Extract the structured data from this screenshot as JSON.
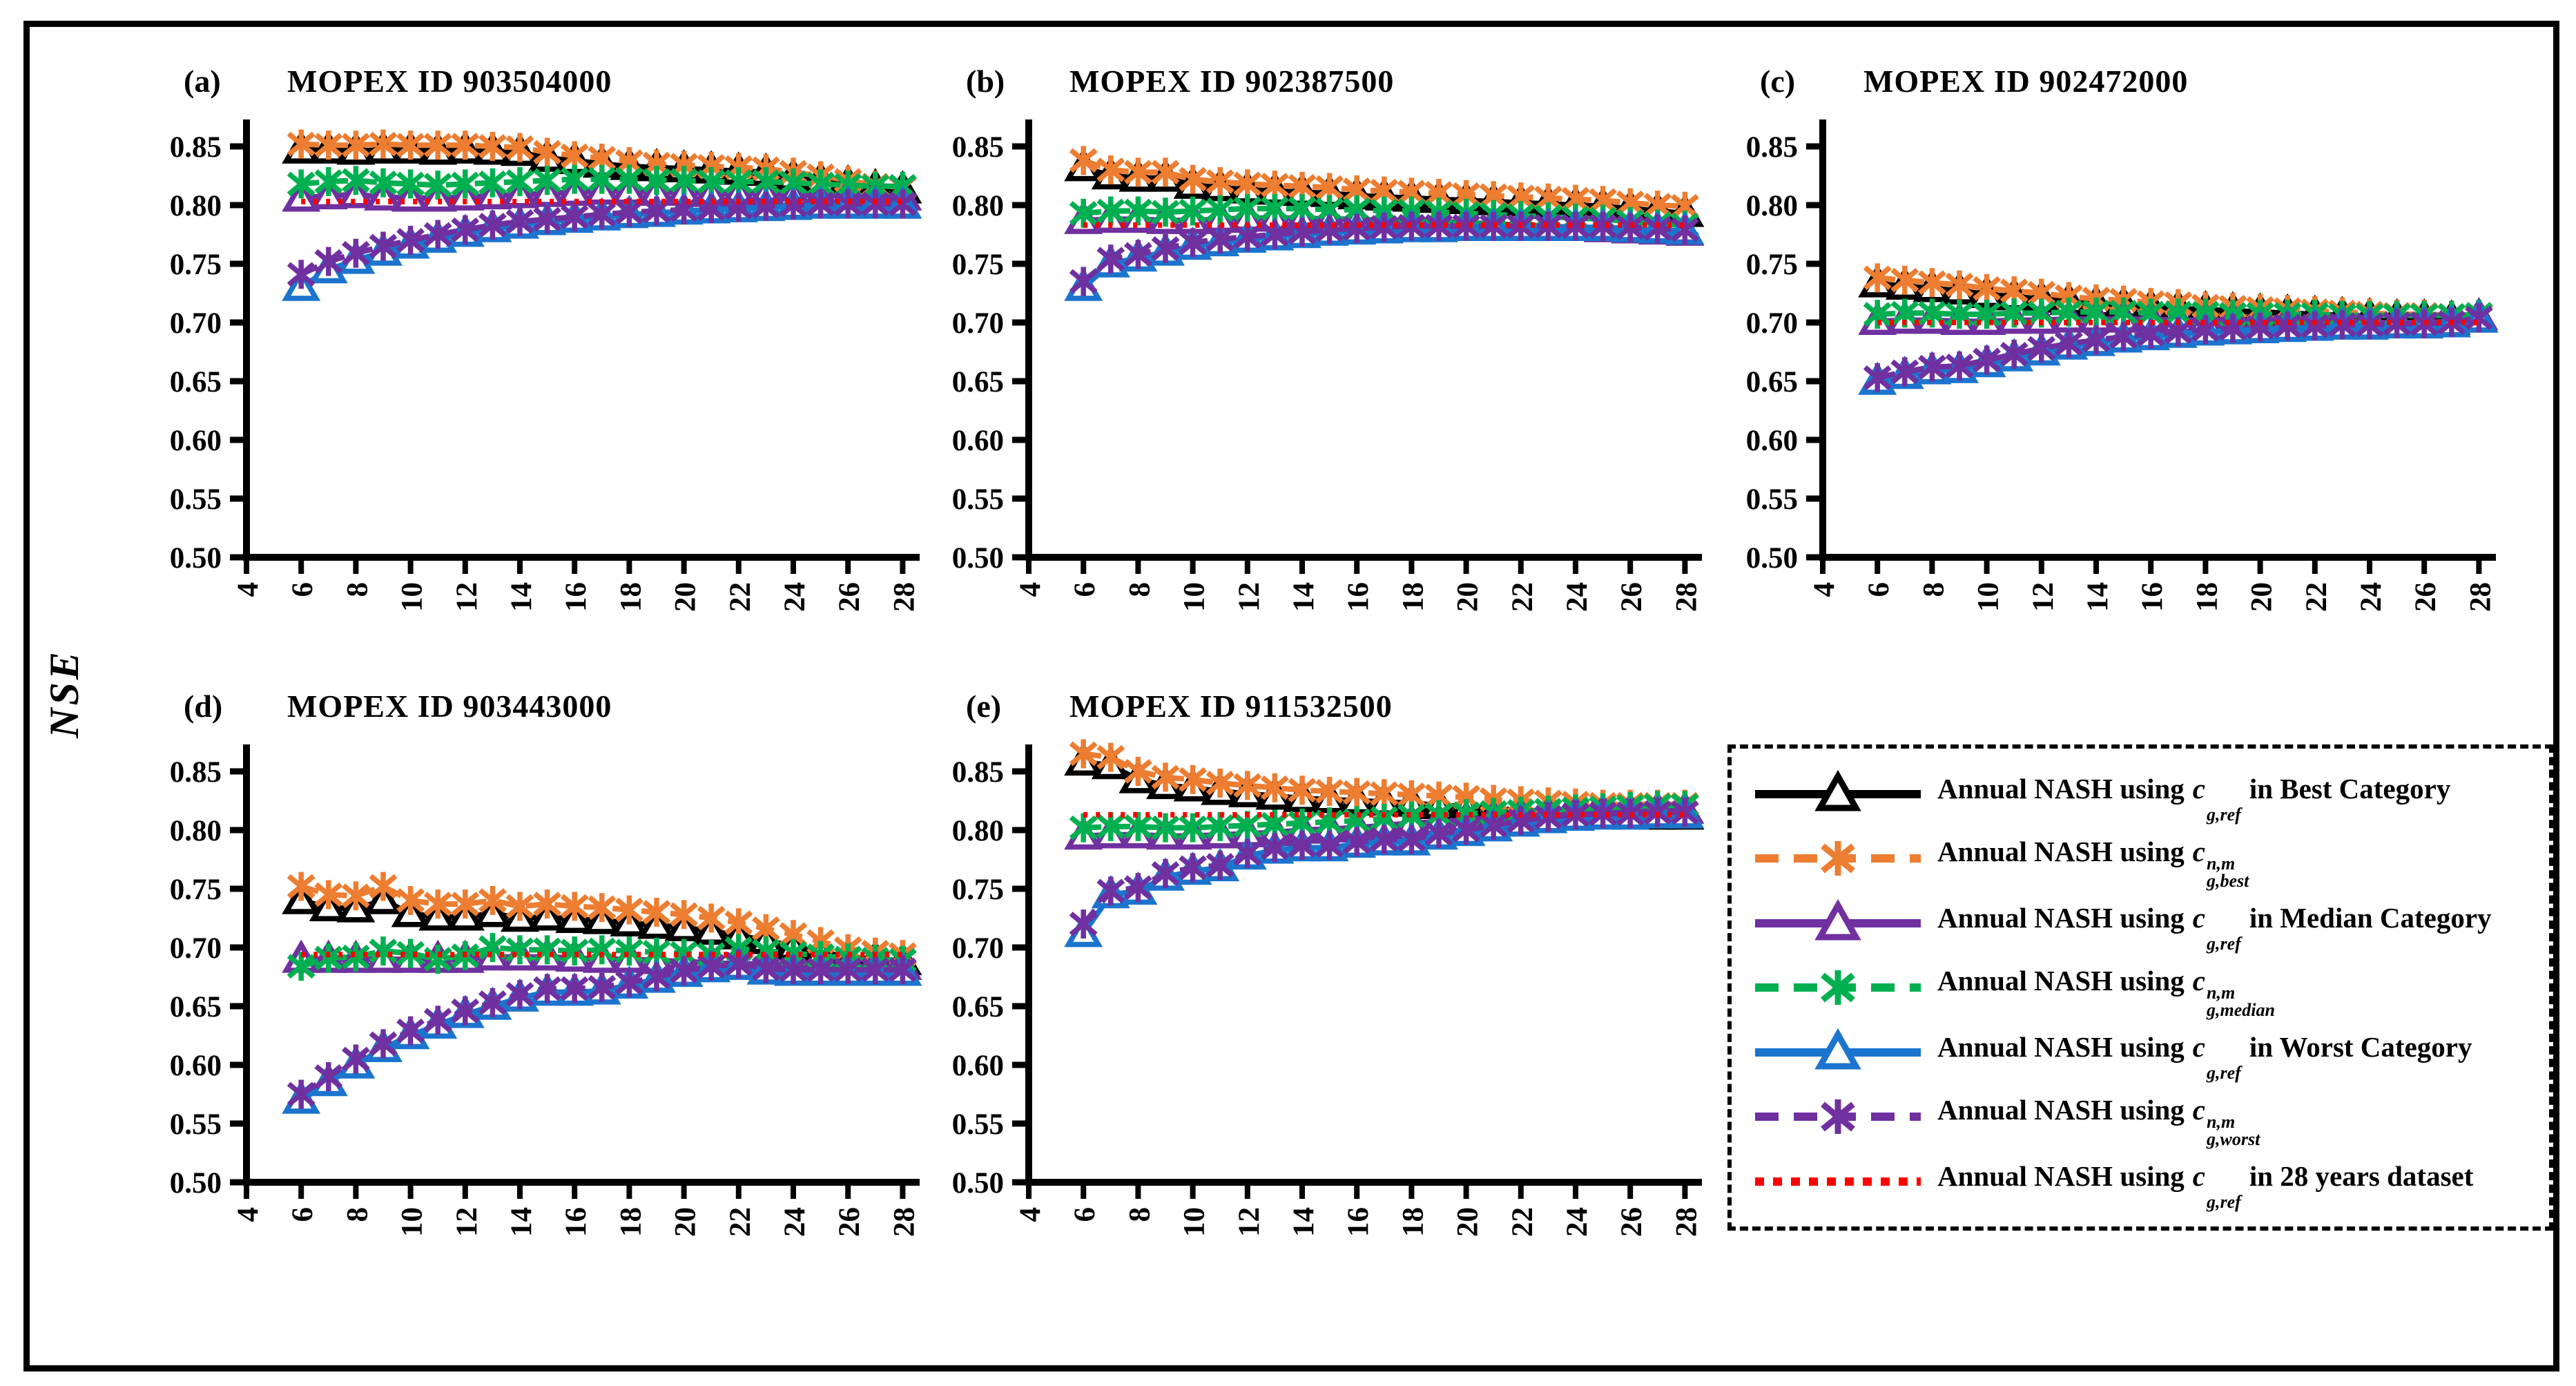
{
  "figure": {
    "ylabel": "NSE"
  },
  "colors": {
    "black": "#000000",
    "orange": "#ED7D31",
    "purple": "#7030A0",
    "green": "#00B050",
    "blue": "#1B74CE",
    "purple_x": "#7030A0",
    "red": "#FF0000",
    "axis": "#000000"
  },
  "series_styles": {
    "black": {
      "color_key": "black",
      "line": "solid",
      "marker": "triangle"
    },
    "orange": {
      "color_key": "orange",
      "line": "dashed",
      "marker": "asterisk"
    },
    "purple": {
      "color_key": "purple",
      "line": "solid",
      "marker": "triangle"
    },
    "green": {
      "color_key": "green",
      "line": "dashed",
      "marker": "asterisk"
    },
    "blue": {
      "color_key": "blue",
      "line": "solid",
      "marker": "triangle"
    },
    "purpleX": {
      "color_key": "purple_x",
      "line": "dashed",
      "marker": "asterisk"
    },
    "red": {
      "color_key": "red",
      "line": "dotted",
      "marker": "none"
    }
  },
  "legend": {
    "row_series": [
      "black",
      "orange",
      "purple",
      "green",
      "blue",
      "purpleX",
      "red"
    ],
    "entries": [
      {
        "prefix": "Annual NASH using",
        "base": "c",
        "sup": "",
        "sub": "g,ref",
        "suffix": "in Best Category"
      },
      {
        "prefix": "Annual NASH using",
        "base": "c",
        "sup": "n,m",
        "sub": "g,best",
        "suffix": ""
      },
      {
        "prefix": "Annual NASH using",
        "base": "c",
        "sup": "",
        "sub": "g,ref",
        "suffix": "in Median Category"
      },
      {
        "prefix": "Annual NASH using",
        "base": "c",
        "sup": "n,m",
        "sub": "g,median",
        "suffix": ""
      },
      {
        "prefix": "Annual NASH using",
        "base": "c",
        "sup": "",
        "sub": "g,ref",
        "suffix": "in Worst Category"
      },
      {
        "prefix": "Annual NASH using",
        "base": "c",
        "sup": "n,m",
        "sub": "g,worst",
        "suffix": ""
      },
      {
        "prefix": "Annual NASH using",
        "base": "c",
        "sup": "",
        "sub": "g,ref",
        "suffix": "in 28 years dataset"
      }
    ]
  },
  "chart_data": {
    "type": "line",
    "ylabel": "NSE",
    "xlabel": "",
    "grid": false,
    "legend_position": "bottom-right-box",
    "x_ticks": [
      4,
      6,
      8,
      10,
      12,
      14,
      16,
      18,
      20,
      22,
      24,
      26,
      28
    ],
    "y_tick_labels": [
      "0.50",
      "0.55",
      "0.60",
      "0.65",
      "0.70",
      "0.75",
      "0.80",
      "0.85"
    ],
    "ylim": [
      0.5,
      0.872
    ],
    "xlim": [
      4,
      28.6
    ],
    "x": [
      6,
      7,
      8,
      9,
      10,
      11,
      12,
      13,
      14,
      15,
      16,
      17,
      18,
      19,
      20,
      21,
      22,
      23,
      24,
      25,
      26,
      27,
      28
    ],
    "series_names": {
      "black": "Annual NASH using c_g,ref in Best Category",
      "orange": "Annual NASH using c^n,m_g,best",
      "purple": "Annual NASH using c_g,ref in Median Category",
      "green": "Annual NASH using c^n,m_g,median",
      "blue": "Annual NASH using c_g,ref in Worst Category",
      "purpleX": "Annual NASH using c^n,m_g,worst",
      "red": "Annual NASH using c_g,ref in 28 years dataset"
    },
    "charts": [
      {
        "panel_label": "(a)",
        "title": "MOPEX ID 903504000",
        "red_ref": 0.803,
        "series": {
          "black": [
            0.847,
            0.847,
            0.846,
            0.847,
            0.847,
            0.846,
            0.847,
            0.846,
            0.845,
            0.84,
            0.838,
            0.835,
            0.833,
            0.832,
            0.831,
            0.83,
            0.829,
            0.828,
            0.824,
            0.821,
            0.818,
            0.815,
            0.813
          ],
          "orange": [
            0.852,
            0.851,
            0.851,
            0.852,
            0.851,
            0.851,
            0.851,
            0.85,
            0.849,
            0.845,
            0.842,
            0.84,
            0.837,
            0.835,
            0.834,
            0.833,
            0.832,
            0.831,
            0.828,
            0.825,
            0.821,
            0.817,
            0.815
          ],
          "purple": [
            0.806,
            0.808,
            0.809,
            0.807,
            0.806,
            0.806,
            0.807,
            0.808,
            0.809,
            0.81,
            0.811,
            0.812,
            0.812,
            0.811,
            0.811,
            0.81,
            0.81,
            0.81,
            0.809,
            0.808,
            0.808,
            0.807,
            0.807
          ],
          "green": [
            0.818,
            0.82,
            0.821,
            0.819,
            0.818,
            0.817,
            0.818,
            0.819,
            0.82,
            0.821,
            0.822,
            0.822,
            0.822,
            0.821,
            0.821,
            0.82,
            0.82,
            0.82,
            0.819,
            0.818,
            0.817,
            0.816,
            0.816
          ],
          "blue": [
            0.73,
            0.745,
            0.753,
            0.76,
            0.766,
            0.771,
            0.776,
            0.78,
            0.783,
            0.786,
            0.788,
            0.79,
            0.792,
            0.793,
            0.795,
            0.796,
            0.797,
            0.798,
            0.799,
            0.8,
            0.8,
            0.8,
            0.8
          ],
          "purpleX": [
            0.741,
            0.752,
            0.759,
            0.765,
            0.77,
            0.775,
            0.779,
            0.783,
            0.786,
            0.788,
            0.79,
            0.792,
            0.794,
            0.795,
            0.796,
            0.797,
            0.798,
            0.799,
            0.8,
            0.801,
            0.801,
            0.801,
            0.801
          ]
        }
      },
      {
        "panel_label": "(b)",
        "title": "MOPEX ID 902387500",
        "red_ref": 0.783,
        "series": {
          "black": [
            0.832,
            0.825,
            0.823,
            0.823,
            0.817,
            0.815,
            0.813,
            0.812,
            0.811,
            0.81,
            0.808,
            0.807,
            0.806,
            0.805,
            0.804,
            0.803,
            0.802,
            0.801,
            0.8,
            0.799,
            0.797,
            0.795,
            0.793
          ],
          "orange": [
            0.838,
            0.83,
            0.828,
            0.828,
            0.822,
            0.82,
            0.818,
            0.817,
            0.816,
            0.815,
            0.813,
            0.812,
            0.811,
            0.81,
            0.809,
            0.808,
            0.807,
            0.806,
            0.805,
            0.804,
            0.802,
            0.8,
            0.799
          ],
          "purple": [
            0.787,
            0.788,
            0.788,
            0.787,
            0.787,
            0.788,
            0.789,
            0.789,
            0.789,
            0.788,
            0.788,
            0.787,
            0.787,
            0.786,
            0.785,
            0.784,
            0.783,
            0.782,
            0.781,
            0.78,
            0.779,
            0.778,
            0.777
          ],
          "green": [
            0.793,
            0.795,
            0.795,
            0.794,
            0.795,
            0.796,
            0.797,
            0.797,
            0.797,
            0.796,
            0.796,
            0.795,
            0.795,
            0.794,
            0.793,
            0.792,
            0.791,
            0.79,
            0.789,
            0.788,
            0.786,
            0.784,
            0.783
          ],
          "blue": [
            0.73,
            0.75,
            0.755,
            0.76,
            0.765,
            0.768,
            0.771,
            0.773,
            0.775,
            0.777,
            0.778,
            0.779,
            0.78,
            0.78,
            0.781,
            0.781,
            0.781,
            0.781,
            0.781,
            0.781,
            0.78,
            0.779,
            0.778
          ],
          "purpleX": [
            0.735,
            0.754,
            0.758,
            0.763,
            0.768,
            0.771,
            0.773,
            0.775,
            0.777,
            0.779,
            0.78,
            0.781,
            0.782,
            0.782,
            0.782,
            0.782,
            0.782,
            0.782,
            0.782,
            0.782,
            0.781,
            0.78,
            0.779
          ]
        }
      },
      {
        "panel_label": "(c)",
        "title": "MOPEX ID 902472000",
        "red_ref": 0.7,
        "series": {
          "black": [
            0.733,
            0.731,
            0.729,
            0.727,
            0.724,
            0.722,
            0.72,
            0.718,
            0.716,
            0.715,
            0.713,
            0.712,
            0.711,
            0.71,
            0.709,
            0.708,
            0.707,
            0.706,
            0.705,
            0.704,
            0.704,
            0.703,
            0.703
          ],
          "orange": [
            0.738,
            0.736,
            0.734,
            0.732,
            0.729,
            0.727,
            0.725,
            0.722,
            0.72,
            0.719,
            0.717,
            0.716,
            0.714,
            0.713,
            0.712,
            0.711,
            0.71,
            0.709,
            0.708,
            0.707,
            0.707,
            0.706,
            0.706
          ],
          "purple": [
            0.701,
            0.702,
            0.702,
            0.701,
            0.701,
            0.702,
            0.702,
            0.703,
            0.703,
            0.703,
            0.703,
            0.702,
            0.702,
            0.702,
            0.701,
            0.701,
            0.701,
            0.701,
            0.7,
            0.7,
            0.7,
            0.701,
            0.705
          ],
          "green": [
            0.707,
            0.708,
            0.708,
            0.707,
            0.707,
            0.708,
            0.708,
            0.709,
            0.709,
            0.709,
            0.708,
            0.708,
            0.708,
            0.707,
            0.707,
            0.707,
            0.707,
            0.706,
            0.706,
            0.706,
            0.706,
            0.706,
            0.707
          ],
          "blue": [
            0.65,
            0.655,
            0.659,
            0.66,
            0.665,
            0.67,
            0.675,
            0.68,
            0.683,
            0.686,
            0.688,
            0.69,
            0.692,
            0.693,
            0.694,
            0.695,
            0.696,
            0.697,
            0.697,
            0.698,
            0.698,
            0.699,
            0.703
          ],
          "purpleX": [
            0.653,
            0.658,
            0.662,
            0.663,
            0.668,
            0.673,
            0.678,
            0.682,
            0.685,
            0.688,
            0.69,
            0.692,
            0.694,
            0.695,
            0.696,
            0.697,
            0.697,
            0.698,
            0.698,
            0.699,
            0.699,
            0.7,
            0.704
          ]
        }
      },
      {
        "panel_label": "(d)",
        "title": "MOPEX ID 903443000",
        "red_ref": 0.694,
        "series": {
          "black": [
            0.74,
            0.734,
            0.733,
            0.74,
            0.729,
            0.726,
            0.726,
            0.729,
            0.725,
            0.726,
            0.724,
            0.723,
            0.721,
            0.719,
            0.717,
            0.714,
            0.71,
            0.706,
            0.701,
            0.696,
            0.692,
            0.69,
            0.688
          ],
          "orange": [
            0.752,
            0.745,
            0.744,
            0.752,
            0.74,
            0.737,
            0.737,
            0.74,
            0.735,
            0.737,
            0.735,
            0.734,
            0.732,
            0.73,
            0.728,
            0.725,
            0.721,
            0.716,
            0.711,
            0.705,
            0.699,
            0.696,
            0.694
          ],
          "purple": [
            0.69,
            0.69,
            0.69,
            0.69,
            0.69,
            0.69,
            0.69,
            0.692,
            0.692,
            0.692,
            0.691,
            0.69,
            0.69,
            0.689,
            0.688,
            0.687,
            0.686,
            0.686,
            0.685,
            0.685,
            0.684,
            0.684,
            0.684
          ],
          "green": [
            0.684,
            0.691,
            0.692,
            0.697,
            0.695,
            0.69,
            0.693,
            0.7,
            0.698,
            0.698,
            0.697,
            0.698,
            0.697,
            0.696,
            0.695,
            0.694,
            0.699,
            0.697,
            0.695,
            0.693,
            0.691,
            0.69,
            0.689
          ],
          "blue": [
            0.57,
            0.585,
            0.6,
            0.614,
            0.625,
            0.634,
            0.643,
            0.65,
            0.657,
            0.662,
            0.662,
            0.663,
            0.668,
            0.673,
            0.678,
            0.682,
            0.684,
            0.68,
            0.679,
            0.679,
            0.679,
            0.679,
            0.679
          ],
          "purpleX": [
            0.575,
            0.59,
            0.605,
            0.618,
            0.629,
            0.638,
            0.646,
            0.653,
            0.66,
            0.665,
            0.665,
            0.666,
            0.67,
            0.675,
            0.68,
            0.684,
            0.686,
            0.682,
            0.681,
            0.681,
            0.681,
            0.681,
            0.681
          ]
        }
      },
      {
        "panel_label": "(e)",
        "title": "MOPEX ID 911532500",
        "red_ref": 0.813,
        "series": {
          "black": [
            0.858,
            0.855,
            0.843,
            0.838,
            0.836,
            0.833,
            0.831,
            0.829,
            0.827,
            0.826,
            0.825,
            0.824,
            0.823,
            0.821,
            0.82,
            0.818,
            0.817,
            0.816,
            0.815,
            0.814,
            0.813,
            0.812,
            0.812
          ],
          "orange": [
            0.865,
            0.862,
            0.85,
            0.845,
            0.843,
            0.84,
            0.838,
            0.836,
            0.834,
            0.833,
            0.832,
            0.831,
            0.83,
            0.829,
            0.828,
            0.826,
            0.825,
            0.824,
            0.823,
            0.822,
            0.822,
            0.822,
            0.822
          ],
          "purple": [
            0.795,
            0.796,
            0.796,
            0.795,
            0.795,
            0.796,
            0.797,
            0.798,
            0.8,
            0.801,
            0.802,
            0.804,
            0.806,
            0.807,
            0.809,
            0.81,
            0.812,
            0.813,
            0.814,
            0.815,
            0.816,
            0.817,
            0.817
          ],
          "green": [
            0.802,
            0.803,
            0.803,
            0.802,
            0.802,
            0.803,
            0.804,
            0.805,
            0.806,
            0.807,
            0.808,
            0.81,
            0.812,
            0.813,
            0.814,
            0.815,
            0.816,
            0.817,
            0.818,
            0.819,
            0.82,
            0.821,
            0.821
          ],
          "blue": [
            0.712,
            0.745,
            0.748,
            0.76,
            0.765,
            0.768,
            0.778,
            0.783,
            0.785,
            0.785,
            0.788,
            0.79,
            0.79,
            0.795,
            0.798,
            0.802,
            0.806,
            0.809,
            0.811,
            0.812,
            0.812,
            0.813,
            0.813
          ],
          "purpleX": [
            0.72,
            0.748,
            0.751,
            0.763,
            0.768,
            0.77,
            0.78,
            0.785,
            0.787,
            0.787,
            0.79,
            0.792,
            0.792,
            0.797,
            0.8,
            0.804,
            0.808,
            0.811,
            0.813,
            0.814,
            0.814,
            0.815,
            0.815
          ]
        }
      }
    ]
  }
}
